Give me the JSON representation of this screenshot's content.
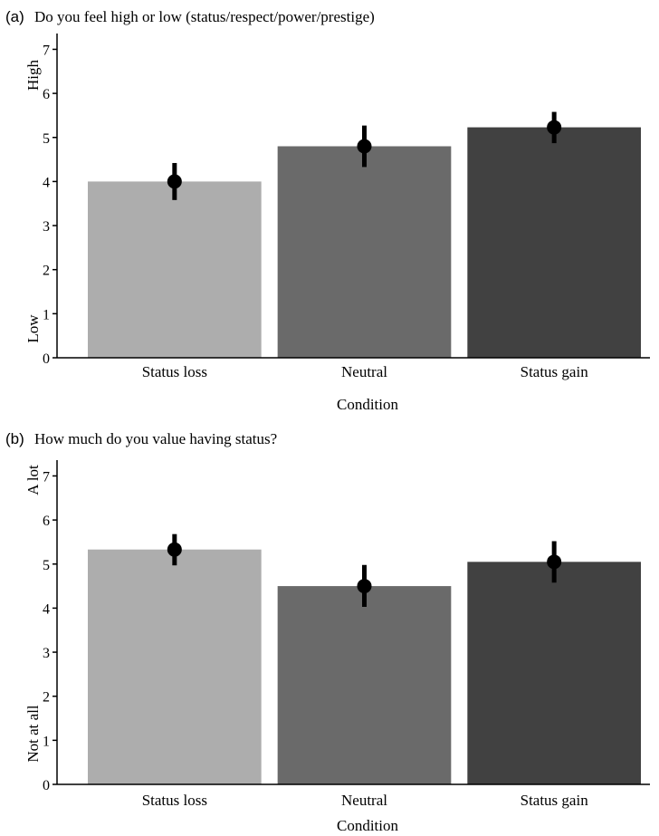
{
  "chart_data": [
    {
      "type": "bar",
      "panel_label": "(a)",
      "title": "Do you feel high or low (status/respect/power/prestige)",
      "categories": [
        "Status loss",
        "Neutral",
        "Status gain"
      ],
      "values": [
        4.0,
        4.8,
        5.23
      ],
      "error_bars": [
        [
          3.58,
          4.42
        ],
        [
          4.33,
          5.27
        ],
        [
          4.87,
          5.58
        ]
      ],
      "colors": [
        "#adadad",
        "#6a6a6a",
        "#414141"
      ],
      "xlabel": "Condition",
      "ylabel": "",
      "y_anchor_low": "Low",
      "y_anchor_high": "High",
      "ylim": [
        0,
        7.4
      ],
      "yticks": [
        0,
        1,
        2,
        3,
        4,
        5,
        6,
        7
      ],
      "grid": false
    },
    {
      "type": "bar",
      "panel_label": "(b)",
      "title": "How much do you value having status?",
      "categories": [
        "Status loss",
        "Neutral",
        "Status gain"
      ],
      "values": [
        5.33,
        4.5,
        5.05
      ],
      "error_bars": [
        [
          4.97,
          5.68
        ],
        [
          4.03,
          4.98
        ],
        [
          4.58,
          5.52
        ]
      ],
      "colors": [
        "#adadad",
        "#6a6a6a",
        "#414141"
      ],
      "xlabel": "Condition",
      "ylabel": "",
      "y_anchor_low": "Not at all",
      "y_anchor_high": "A lot",
      "ylim": [
        0,
        7.4
      ],
      "yticks": [
        0,
        1,
        2,
        3,
        4,
        5,
        6,
        7
      ],
      "grid": false
    }
  ]
}
